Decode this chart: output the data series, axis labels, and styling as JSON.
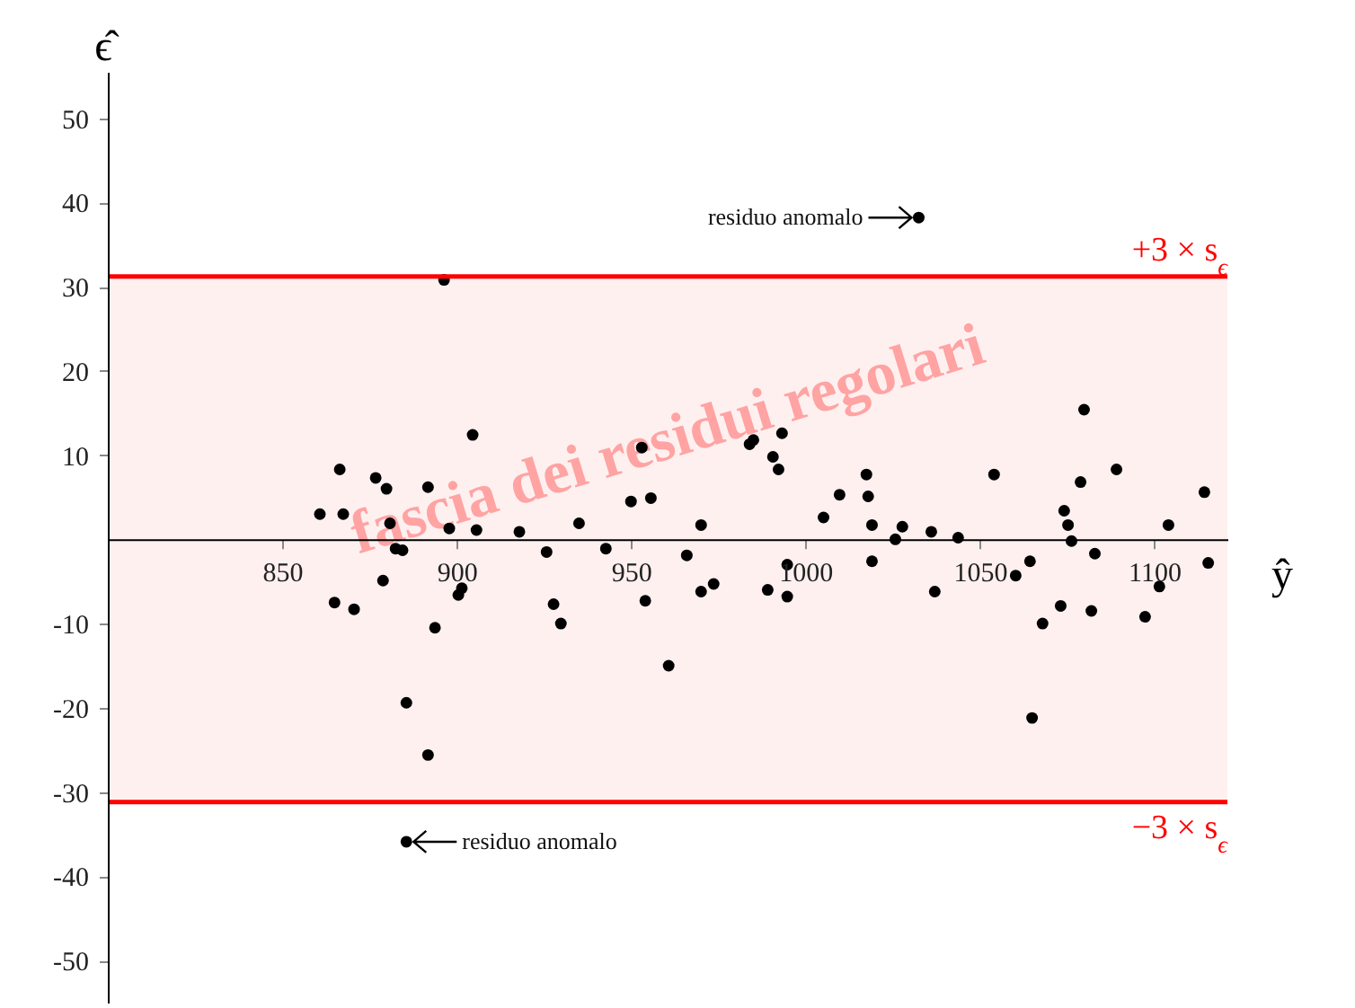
{
  "chart_data": {
    "type": "scatter",
    "xlabel": "ŷ",
    "ylabel": "ϵ̂",
    "marker": "circle",
    "x": [
      860.8,
      865,
      866.5,
      867.5,
      870.6,
      876.8,
      878.9,
      879.9,
      880.9,
      882.5,
      884.5,
      885.6,
      891.8,
      891.8,
      893.8,
      896.4,
      897.9,
      900.5,
      901.5,
      904.6,
      905.7,
      918,
      925.8,
      927.8,
      929.9,
      935.1,
      942.8,
      950,
      953.1,
      954.1,
      955.7,
      960.8,
      966,
      970.1,
      970.1,
      973.7,
      984,
      985.1,
      989.2,
      990.7,
      992.3,
      993.3,
      994.8,
      994.8,
      1005.2,
      1009.8,
      1017.5,
      1018,
      1019.1,
      1019.1,
      1025.8,
      1027.8,
      1032.5,
      1036.1,
      1037.1,
      1043.8,
      1054.1,
      1060.3,
      1064.4,
      1065,
      1068,
      1073.2,
      1074.2,
      1075.3,
      1076.3,
      1078.9,
      1079.9,
      1082,
      1083,
      1089.2,
      1097.4,
      1101.5,
      1104.1,
      1114.4,
      1115.5,
      885.6
    ],
    "series": [
      {
        "color": "#000000",
        "values": [
          3.0,
          -7.5,
          8.3,
          3.0,
          -8.3,
          7.3,
          -4.9,
          6.0,
          1.9,
          -1.1,
          -1.3,
          -19.4,
          6.2,
          -25.6,
          -10.5,
          30.8,
          1.3,
          -6.6,
          -5.8,
          12.4,
          1.1,
          0.9,
          -1.5,
          -7.7,
          -10.0,
          1.9,
          -1.1,
          4.5,
          10.9,
          -7.3,
          4.9,
          -15.0,
          -1.9,
          1.7,
          -6.2,
          -5.3,
          11.3,
          11.8,
          -6.0,
          9.8,
          8.3,
          12.6,
          -3.0,
          -6.8,
          2.6,
          5.3,
          7.7,
          5.1,
          1.7,
          -2.6,
          0.0,
          1.5,
          38.2,
          0.9,
          -6.2,
          0.2,
          7.7,
          -4.3,
          -2.6,
          -21.2,
          -10.0,
          -7.9,
          3.4,
          1.7,
          -0.2,
          6.8,
          15.4,
          -8.5,
          -1.7,
          8.3,
          -9.2,
          -5.6,
          1.7,
          5.6,
          -2.8,
          -35.9
        ]
      }
    ],
    "xlim": [
      800,
      1121
    ],
    "ylim": [
      -55,
      55.5
    ],
    "xticks": [
      850,
      900,
      950,
      1000,
      1050,
      1100
    ],
    "yticks": [
      -50,
      -40,
      -30,
      -20,
      -10,
      10,
      20,
      30,
      40,
      50
    ],
    "ref_lines": [
      {
        "axis": "y",
        "value": 31.2,
        "label": "+3 × s$_{ϵ}$",
        "color": "#ff0000"
      },
      {
        "axis": "y",
        "value": -31.2,
        "label": "−3 × s$_{ϵ}$",
        "color": "#ff0000"
      }
    ],
    "bands": [
      {
        "axis": "y",
        "from": -31.2,
        "to": 31.2,
        "label": "fascia dei residui regolari",
        "color": "#fff0f0"
      }
    ],
    "annotations": [
      {
        "text": "residuo anomalo",
        "x": 1032.5,
        "y": 38.2
      },
      {
        "text": "residuo anomalo",
        "x": 885.6,
        "y": -35.9
      }
    ]
  }
}
